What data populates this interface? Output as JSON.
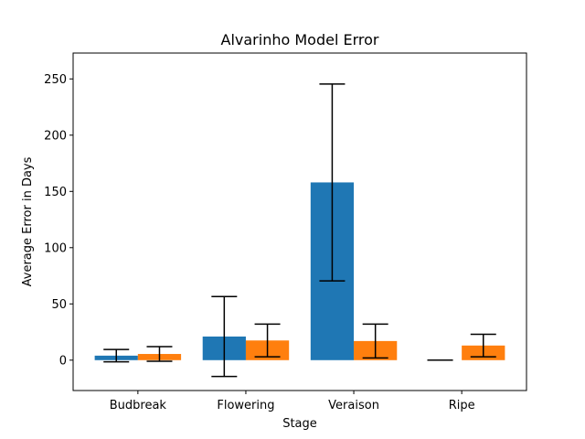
{
  "chart_data": {
    "type": "bar",
    "title": "Alvarinho Model Error",
    "xlabel": "Stage",
    "ylabel": "Average Error in Days",
    "categories": [
      "Budbreak",
      "Flowering",
      "Veraison",
      "Ripe"
    ],
    "ylim": [
      -27,
      273
    ],
    "yticks": [
      0,
      50,
      100,
      150,
      200,
      250
    ],
    "grid": false,
    "legend": "none",
    "series": [
      {
        "color": "#1f77b4",
        "values": [
          4,
          21,
          158,
          0
        ],
        "errors": [
          5.5,
          35.5,
          87.5,
          0
        ]
      },
      {
        "color": "#ff7f0e",
        "values": [
          5.5,
          17.5,
          17,
          13
        ],
        "errors": [
          6.5,
          14.5,
          15,
          10
        ]
      }
    ]
  }
}
